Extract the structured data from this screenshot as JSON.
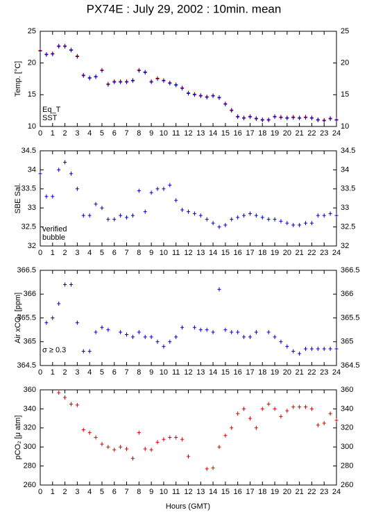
{
  "title": "PX74E : July 29, 2002 : 10min. mean",
  "xlabel": "Hours (GMT)",
  "chart_data": [
    {
      "type": "scatter",
      "ylabel": "Temp. [°C]",
      "x": [
        0,
        0.5,
        1,
        1.5,
        2,
        2.5,
        3,
        3.5,
        4,
        4.5,
        5,
        5.5,
        6,
        6.5,
        7,
        7.5,
        8,
        8.5,
        9,
        9.5,
        10,
        10.5,
        11,
        11.5,
        12,
        12.5,
        13,
        13.5,
        14,
        14.5,
        15,
        15.5,
        16,
        16.5,
        17,
        17.5,
        18,
        18.5,
        19,
        19.5,
        20,
        20.5,
        21,
        21.5,
        22,
        22.5,
        23,
        23.5,
        24
      ],
      "xlim": [
        0,
        24
      ],
      "xticks": [
        0,
        1,
        2,
        3,
        4,
        5,
        6,
        7,
        8,
        9,
        10,
        11,
        12,
        13,
        14,
        15,
        16,
        17,
        18,
        19,
        20,
        21,
        22,
        23,
        24
      ],
      "ylim": [
        10,
        25
      ],
      "yticks": [
        10,
        15,
        20,
        25
      ],
      "series": [
        {
          "name": "Eq_T",
          "color": "#dd0000",
          "values": [
            22,
            21.4,
            21.5,
            22.7,
            22.7,
            22.1,
            21.1,
            18.1,
            17.7,
            17.9,
            18.9,
            16.7,
            17.1,
            17.1,
            17.1,
            17.3,
            18.9,
            18.6,
            17.1,
            17.6,
            17.3,
            16.9,
            16.6,
            16.1,
            15.3,
            15.1,
            14.9,
            14.7,
            14.9,
            14.6,
            13.6,
            12.6,
            11.6,
            11.4,
            11.6,
            11.3,
            11.1,
            11.1,
            11.6,
            11.5,
            11.4,
            11.5,
            11.4,
            11.5,
            11.4,
            11.1,
            11,
            11.3,
            11.1
          ]
        },
        {
          "name": "SST",
          "color": "#0000cc",
          "values": [
            21.9,
            21.3,
            21.4,
            22.6,
            22.6,
            22,
            21,
            18,
            17.6,
            17.8,
            18.8,
            16.6,
            17,
            17,
            17,
            17.2,
            18.8,
            18.5,
            17,
            17.5,
            17.2,
            16.8,
            16.5,
            16,
            15.2,
            15,
            14.8,
            14.6,
            14.8,
            14.5,
            13.5,
            12.5,
            11.5,
            11.3,
            11.5,
            11.2,
            11,
            11,
            11.5,
            11.4,
            11.3,
            11.4,
            11.3,
            11.4,
            11.3,
            11,
            10.9,
            11.2,
            11
          ]
        }
      ]
    },
    {
      "type": "scatter",
      "ylabel": "SBE Sal.",
      "x": [
        0,
        0.5,
        1,
        1.5,
        2,
        2.5,
        3,
        3.5,
        4,
        4.5,
        5,
        5.5,
        6,
        6.5,
        7,
        7.5,
        8,
        8.5,
        9,
        9.5,
        10,
        10.5,
        11,
        11.5,
        12,
        12.5,
        13,
        13.5,
        14,
        14.5,
        15,
        15.5,
        16,
        16.5,
        17,
        17.5,
        18,
        18.5,
        19,
        19.5,
        20,
        20.5,
        21,
        21.5,
        22,
        22.5,
        23,
        23.5,
        24
      ],
      "xlim": [
        0,
        24
      ],
      "xticks": [
        0,
        1,
        2,
        3,
        4,
        5,
        6,
        7,
        8,
        9,
        10,
        11,
        12,
        13,
        14,
        15,
        16,
        17,
        18,
        19,
        20,
        21,
        22,
        23,
        24
      ],
      "ylim": [
        32,
        34.5
      ],
      "yticks": [
        32,
        32.5,
        33,
        33.5,
        34,
        34.5
      ],
      "legend": [
        {
          "text": "verified",
          "color": "#0000cc"
        },
        {
          "text": "bubble",
          "color": "#cc00cc"
        }
      ],
      "series": [
        {
          "name": "verified",
          "color": "#0000cc",
          "values": [
            33.9,
            33.3,
            33.3,
            34,
            34.2,
            33.9,
            33.5,
            32.8,
            32.8,
            33.1,
            33,
            32.7,
            32.7,
            32.8,
            32.75,
            32.8,
            33.45,
            32.9,
            33.4,
            33.5,
            33.5,
            33.6,
            33.2,
            32.95,
            32.9,
            32.85,
            32.8,
            32.7,
            32.6,
            32.5,
            32.55,
            32.7,
            32.75,
            32.8,
            32.85,
            32.8,
            32.75,
            32.7,
            32.7,
            32.65,
            32.6,
            32.55,
            32.55,
            32.6,
            32.6,
            32.8,
            32.8,
            32.85,
            32.8
          ]
        }
      ]
    },
    {
      "type": "scatter",
      "ylabel": "Air xCO₂ [ppm]",
      "annotation": "σ ≥ 0.3",
      "x": [
        0,
        0.5,
        1,
        1.5,
        2,
        2.5,
        3,
        3.5,
        4,
        4.5,
        5,
        5.5,
        6,
        6.5,
        7,
        7.5,
        8,
        8.5,
        9,
        9.5,
        10,
        10.5,
        11,
        11.5,
        12,
        12.5,
        13,
        13.5,
        14,
        14.5,
        15,
        15.5,
        16,
        16.5,
        17,
        17.5,
        18,
        18.5,
        19,
        19.5,
        20,
        20.5,
        21,
        21.5,
        22,
        22.5,
        23,
        23.5,
        24
      ],
      "xlim": [
        0,
        24
      ],
      "xticks": [
        0,
        1,
        2,
        3,
        4,
        5,
        6,
        7,
        8,
        9,
        10,
        11,
        12,
        13,
        14,
        15,
        16,
        17,
        18,
        19,
        20,
        21,
        22,
        23,
        24
      ],
      "ylim": [
        364.5,
        366.5
      ],
      "yticks": [
        364.5,
        365,
        365.5,
        366,
        366.5
      ],
      "series": [
        {
          "name": "Air xCO2",
          "color": "#0000cc",
          "values": [
            null,
            365.4,
            365.5,
            365.8,
            366.2,
            366.2,
            365.4,
            364.8,
            364.8,
            365.2,
            365.3,
            365.25,
            null,
            365.2,
            365.15,
            365.1,
            365.2,
            365.1,
            365.1,
            365,
            364.9,
            365,
            365.1,
            365.3,
            null,
            365.3,
            365.25,
            365.25,
            365.2,
            366.1,
            365.25,
            365.2,
            365.2,
            365.1,
            365.1,
            365.2,
            null,
            365.2,
            365.1,
            365,
            364.9,
            364.8,
            364.75,
            364.85,
            364.85,
            364.85,
            364.85,
            364.85,
            364.85
          ]
        }
      ]
    },
    {
      "type": "scatter",
      "ylabel": "pCO₂ [μ atm]",
      "x": [
        0,
        0.5,
        1,
        1.5,
        2,
        2.5,
        3,
        3.5,
        4,
        4.5,
        5,
        5.5,
        6,
        6.5,
        7,
        7.5,
        8,
        8.5,
        9,
        9.5,
        10,
        10.5,
        11,
        11.5,
        12,
        12.5,
        13,
        13.5,
        14,
        14.5,
        15,
        15.5,
        16,
        16.5,
        17,
        17.5,
        18,
        18.5,
        19,
        19.5,
        20,
        20.5,
        21,
        21.5,
        22,
        22.5,
        23,
        23.5,
        24
      ],
      "xlim": [
        0,
        24
      ],
      "xticks": [
        0,
        1,
        2,
        3,
        4,
        5,
        6,
        7,
        8,
        9,
        10,
        11,
        12,
        13,
        14,
        15,
        16,
        17,
        18,
        19,
        20,
        21,
        22,
        23,
        24
      ],
      "ylim": [
        260,
        360
      ],
      "yticks": [
        260,
        280,
        300,
        320,
        340,
        360
      ],
      "series": [
        {
          "name": "pCO2",
          "color": "#dd0000",
          "values": [
            null,
            null,
            null,
            357,
            352,
            345,
            344,
            318,
            315,
            310,
            303,
            300,
            297,
            300,
            298,
            288,
            315,
            298,
            297,
            305,
            308,
            310,
            310,
            308,
            290,
            null,
            null,
            277,
            278,
            300,
            312,
            320,
            335,
            340,
            330,
            320,
            340,
            345,
            340,
            332,
            338,
            342,
            342,
            342,
            340,
            323,
            325,
            335,
            328
          ]
        }
      ]
    }
  ]
}
